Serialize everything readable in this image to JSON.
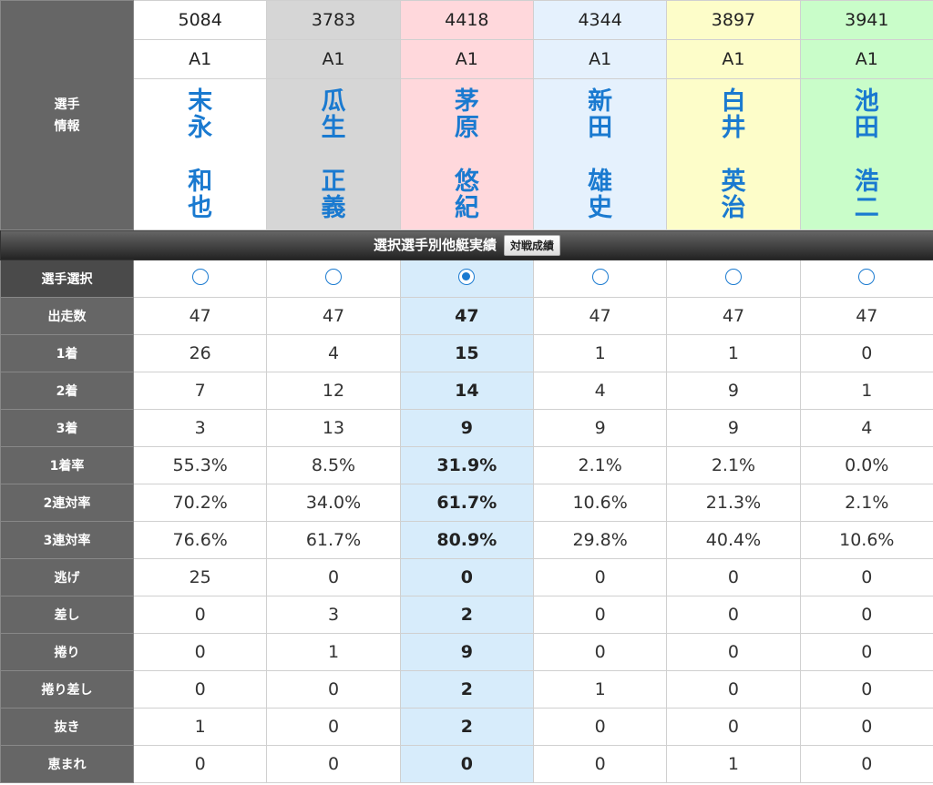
{
  "labels": {
    "player_info": "選手\n情報",
    "bar_title": "選択選手別他艇実績",
    "bar_button": "対戦成績",
    "select": "選手選択"
  },
  "players": [
    {
      "number": "5084",
      "class": "A1",
      "surname": "末\n永",
      "given": "和\n也",
      "bg": "#ffffff"
    },
    {
      "number": "3783",
      "class": "A1",
      "surname": "瓜\n生",
      "given": "正\n義",
      "bg": "#d6d6d6"
    },
    {
      "number": "4418",
      "class": "A1",
      "surname": "茅\n原",
      "given": "悠\n紀",
      "bg": "#ffd8dc"
    },
    {
      "number": "4344",
      "class": "A1",
      "surname": "新\n田",
      "given": "雄\n史",
      "bg": "#e5f1fd"
    },
    {
      "number": "3897",
      "class": "A1",
      "surname": "白\n井",
      "given": "英\n治",
      "bg": "#fdfdc9"
    },
    {
      "number": "3941",
      "class": "A1",
      "surname": "池\n田",
      "given": "浩\n二",
      "bg": "#c9fdc9"
    }
  ],
  "selected_index": 2,
  "stats": [
    {
      "label": "出走数",
      "values": [
        "47",
        "47",
        "47",
        "47",
        "47",
        "47"
      ]
    },
    {
      "label": "1着",
      "values": [
        "26",
        "4",
        "15",
        "1",
        "1",
        "0"
      ]
    },
    {
      "label": "2着",
      "values": [
        "7",
        "12",
        "14",
        "4",
        "9",
        "1"
      ]
    },
    {
      "label": "3着",
      "values": [
        "3",
        "13",
        "9",
        "9",
        "9",
        "4"
      ]
    },
    {
      "label": "1着率",
      "values": [
        "55.3%",
        "8.5%",
        "31.9%",
        "2.1%",
        "2.1%",
        "0.0%"
      ]
    },
    {
      "label": "2連対率",
      "values": [
        "70.2%",
        "34.0%",
        "61.7%",
        "10.6%",
        "21.3%",
        "2.1%"
      ]
    },
    {
      "label": "3連対率",
      "values": [
        "76.6%",
        "61.7%",
        "80.9%",
        "29.8%",
        "40.4%",
        "10.6%"
      ]
    },
    {
      "label": "逃げ",
      "values": [
        "25",
        "0",
        "0",
        "0",
        "0",
        "0"
      ]
    },
    {
      "label": "差し",
      "values": [
        "0",
        "3",
        "2",
        "0",
        "0",
        "0"
      ]
    },
    {
      "label": "捲り",
      "values": [
        "0",
        "1",
        "9",
        "0",
        "0",
        "0"
      ]
    },
    {
      "label": "捲り差し",
      "values": [
        "0",
        "0",
        "2",
        "1",
        "0",
        "0"
      ]
    },
    {
      "label": "抜き",
      "values": [
        "1",
        "0",
        "2",
        "0",
        "0",
        "0"
      ]
    },
    {
      "label": "恵まれ",
      "values": [
        "0",
        "0",
        "0",
        "0",
        "1",
        "0"
      ]
    }
  ]
}
